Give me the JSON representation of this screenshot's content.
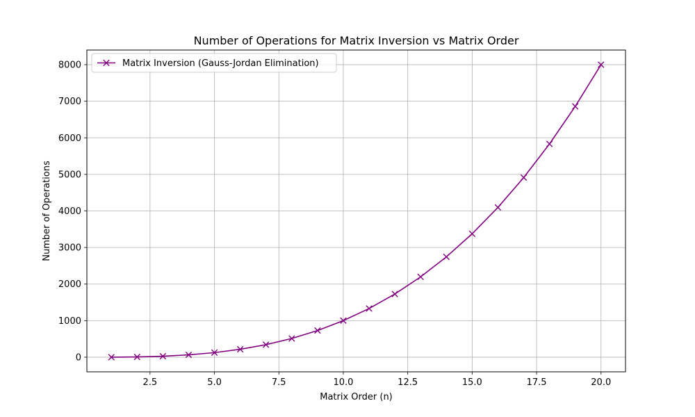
{
  "chart_data": {
    "type": "line",
    "title": "Number of Operations for Matrix Inversion vs Matrix Order",
    "xlabel": "Matrix Order (n)",
    "ylabel": "Number of Operations",
    "xlim": [
      0.05,
      20.95
    ],
    "ylim": [
      -400,
      8400
    ],
    "xticks": [
      2.5,
      5.0,
      7.5,
      10.0,
      12.5,
      15.0,
      17.5,
      20.0
    ],
    "xtick_labels": [
      "2.5",
      "5.0",
      "7.5",
      "10.0",
      "12.5",
      "15.0",
      "17.5",
      "20.0"
    ],
    "yticks": [
      0,
      1000,
      2000,
      3000,
      4000,
      5000,
      6000,
      7000,
      8000
    ],
    "ytick_labels": [
      "0",
      "1000",
      "2000",
      "3000",
      "4000",
      "5000",
      "6000",
      "7000",
      "8000"
    ],
    "grid": true,
    "legend_position": "top-left",
    "series": [
      {
        "name": "Matrix Inversion (Gauss-Jordan Elimination)",
        "color": "#800080",
        "marker": "x",
        "x": [
          1,
          2,
          3,
          4,
          5,
          6,
          7,
          8,
          9,
          10,
          11,
          12,
          13,
          14,
          15,
          16,
          17,
          18,
          19,
          20
        ],
        "y": [
          1,
          8,
          27,
          64,
          125,
          216,
          343,
          512,
          729,
          1000,
          1331,
          1728,
          2197,
          2744,
          3375,
          4096,
          4913,
          5832,
          6859,
          8000
        ]
      }
    ]
  }
}
